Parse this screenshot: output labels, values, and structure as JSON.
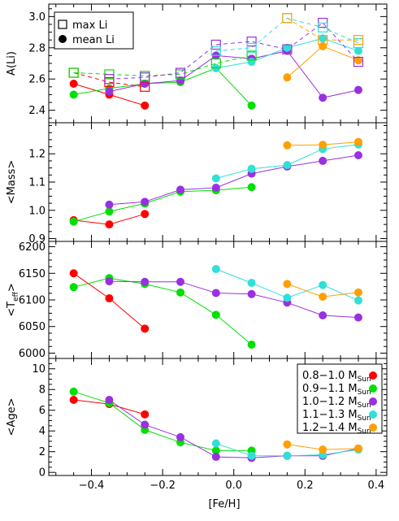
{
  "colors": {
    "0.8-1.0": "#ff0000",
    "0.9-1.1": "#00e000",
    "1.0-1.2": "#9a30e0",
    "1.1-1.3": "#30e0d8",
    "1.2-1.4": "#ffa000",
    "frame": "#000000"
  },
  "x_axis": {
    "label": "[Fe/H]",
    "xlim": [
      -0.52,
      0.43
    ],
    "ticks": [
      -0.4,
      -0.2,
      0.0,
      0.2,
      0.4
    ],
    "tick_labels": [
      "−0.4",
      "−0.2",
      "0.0",
      "0.2",
      "0.4"
    ]
  },
  "legend_top": {
    "max_label": "max Li",
    "mean_label": "mean Li"
  },
  "legend_bottom": [
    {
      "key": "0.8-1.0",
      "text": "0.8−1.0 M",
      "sub": "Sun"
    },
    {
      "key": "0.9-1.1",
      "text": "0.9−1.1 M",
      "sub": "Sun"
    },
    {
      "key": "1.0-1.2",
      "text": "1.0−1.2 M",
      "sub": "Sun"
    },
    {
      "key": "1.1-1.3",
      "text": "1.1−1.3 M",
      "sub": "Sun"
    },
    {
      "key": "1.2-1.4",
      "text": "1.2−1.4 M",
      "sub": "Sun"
    }
  ],
  "chart_data": [
    {
      "type": "line",
      "panel": "ALi",
      "ylabel": "A(Li)",
      "ylim": [
        2.32,
        3.08
      ],
      "yticks": [
        2.4,
        2.6,
        2.8,
        3.0
      ],
      "ytick_labels": [
        "2.4",
        "2.6",
        "2.8",
        "3.0"
      ],
      "series": [
        {
          "key": "0.8-1.0",
          "kind": "mean",
          "x": [
            -0.45,
            -0.35,
            -0.25
          ],
          "y": [
            2.57,
            2.5,
            2.43
          ]
        },
        {
          "key": "0.9-1.1",
          "kind": "mean",
          "x": [
            -0.45,
            -0.35,
            -0.25,
            -0.15,
            -0.05,
            0.05
          ],
          "y": [
            2.5,
            2.54,
            2.57,
            2.58,
            2.67,
            2.43
          ]
        },
        {
          "key": "1.0-1.2",
          "kind": "mean",
          "x": [
            -0.35,
            -0.25,
            -0.15,
            -0.05,
            0.05,
            0.15,
            0.25,
            0.35
          ],
          "y": [
            2.52,
            2.57,
            2.59,
            2.75,
            2.73,
            2.78,
            2.48,
            2.53
          ]
        },
        {
          "key": "1.1-1.3",
          "kind": "mean",
          "x": [
            -0.05,
            0.05,
            0.15,
            0.25,
            0.35
          ],
          "y": [
            2.67,
            2.71,
            2.8,
            2.86,
            2.78
          ]
        },
        {
          "key": "1.2-1.4",
          "kind": "mean",
          "x": [
            0.15,
            0.25,
            0.35
          ],
          "y": [
            2.61,
            2.81,
            2.72
          ]
        },
        {
          "key": "0.8-1.0",
          "kind": "max",
          "x": [
            -0.45,
            -0.35,
            -0.25
          ],
          "y": [
            2.64,
            2.58,
            2.55
          ]
        },
        {
          "key": "0.9-1.1",
          "kind": "max",
          "x": [
            -0.45,
            -0.35,
            -0.25,
            -0.15,
            -0.05,
            0.05
          ],
          "y": [
            2.64,
            2.63,
            2.62,
            2.63,
            2.7,
            2.75
          ]
        },
        {
          "key": "1.0-1.2",
          "kind": "max",
          "x": [
            -0.35,
            -0.25,
            -0.15,
            -0.05,
            0.05,
            0.15,
            0.25,
            0.35
          ],
          "y": [
            2.6,
            2.61,
            2.64,
            2.82,
            2.84,
            2.79,
            2.96,
            2.71
          ]
        },
        {
          "key": "1.1-1.3",
          "kind": "max",
          "x": [
            -0.05,
            0.05,
            0.15,
            0.25,
            0.35
          ],
          "y": [
            2.78,
            2.8,
            2.99,
            2.93,
            2.83
          ]
        },
        {
          "key": "1.2-1.4",
          "kind": "max",
          "x": [
            0.15,
            0.25,
            0.35
          ],
          "y": [
            2.99,
            2.85,
            2.85
          ]
        }
      ]
    },
    {
      "type": "line",
      "panel": "Mass",
      "ylabel": "<Mass>",
      "ylim": [
        0.89,
        1.31
      ],
      "yticks": [
        0.9,
        1.0,
        1.1,
        1.2
      ],
      "ytick_labels": [
        "0.9",
        "1.0",
        "1.1",
        "1.2"
      ],
      "series": [
        {
          "key": "0.8-1.0",
          "x": [
            -0.45,
            -0.35,
            -0.25
          ],
          "y": [
            0.965,
            0.95,
            0.987
          ]
        },
        {
          "key": "0.9-1.1",
          "x": [
            -0.45,
            -0.35,
            -0.25,
            -0.15,
            -0.05,
            0.05
          ],
          "y": [
            0.96,
            0.996,
            1.024,
            1.066,
            1.071,
            1.082
          ]
        },
        {
          "key": "1.0-1.2",
          "x": [
            -0.35,
            -0.25,
            -0.15,
            -0.05,
            0.05,
            0.15,
            0.25,
            0.35
          ],
          "y": [
            1.02,
            1.03,
            1.073,
            1.08,
            1.13,
            1.155,
            1.175,
            1.195
          ]
        },
        {
          "key": "1.1-1.3",
          "x": [
            -0.05,
            0.05,
            0.15,
            0.25,
            0.35
          ],
          "y": [
            1.113,
            1.147,
            1.16,
            1.217,
            1.233
          ]
        },
        {
          "key": "1.2-1.4",
          "x": [
            0.15,
            0.25,
            0.35
          ],
          "y": [
            1.23,
            1.232,
            1.242
          ]
        }
      ]
    },
    {
      "type": "line",
      "panel": "Teff",
      "ylabel": "<T",
      "ylabel_sub": "eff",
      "ylabel_end": ">",
      "ylim": [
        5990,
        6210
      ],
      "yticks": [
        6000,
        6050,
        6100,
        6150,
        6200
      ],
      "ytick_labels": [
        "6000",
        "6050",
        "6100",
        "6150",
        "6200"
      ],
      "series": [
        {
          "key": "0.8-1.0",
          "x": [
            -0.45,
            -0.35,
            -0.25
          ],
          "y": [
            6150,
            6103,
            6046
          ]
        },
        {
          "key": "0.9-1.1",
          "x": [
            -0.45,
            -0.35,
            -0.25,
            -0.15,
            -0.05,
            0.05
          ],
          "y": [
            6124,
            6141,
            6130,
            6114,
            6072,
            6016
          ]
        },
        {
          "key": "1.0-1.2",
          "x": [
            -0.35,
            -0.25,
            -0.15,
            -0.05,
            0.05,
            0.15,
            0.25,
            0.35
          ],
          "y": [
            6135,
            6134,
            6134,
            6113,
            6111,
            6095,
            6071,
            6067
          ]
        },
        {
          "key": "1.1-1.3",
          "x": [
            -0.05,
            0.05,
            0.15,
            0.25,
            0.35
          ],
          "y": [
            6158,
            6132,
            6104,
            6128,
            6099
          ]
        },
        {
          "key": "1.2-1.4",
          "x": [
            0.15,
            0.25,
            0.35
          ],
          "y": [
            6130,
            6106,
            6114
          ]
        }
      ]
    },
    {
      "type": "line",
      "panel": "Age",
      "ylabel": "<Age>",
      "ylim": [
        -0.3,
        11
      ],
      "yticks": [
        0,
        2,
        4,
        6,
        8,
        10
      ],
      "ytick_labels": [
        "0",
        "2",
        "4",
        "6",
        "8",
        "10"
      ],
      "series": [
        {
          "key": "0.8-1.0",
          "x": [
            -0.45,
            -0.35,
            -0.25
          ],
          "y": [
            7.0,
            6.6,
            5.6
          ]
        },
        {
          "key": "0.9-1.1",
          "x": [
            -0.45,
            -0.35,
            -0.25,
            -0.15,
            -0.05,
            0.05
          ],
          "y": [
            7.8,
            6.7,
            4.1,
            2.9,
            2.1,
            2.1
          ]
        },
        {
          "key": "1.0-1.2",
          "x": [
            -0.35,
            -0.25,
            -0.15,
            -0.05,
            0.05,
            0.15,
            0.25,
            0.35
          ],
          "y": [
            7.0,
            4.6,
            3.4,
            1.5,
            1.4,
            1.6,
            1.6,
            2.3
          ]
        },
        {
          "key": "1.1-1.3",
          "x": [
            -0.05,
            0.05,
            0.15,
            0.25,
            0.35
          ],
          "y": [
            2.8,
            1.6,
            1.6,
            1.7,
            2.2
          ]
        },
        {
          "key": "1.2-1.4",
          "x": [
            0.15,
            0.25,
            0.35
          ],
          "y": [
            2.7,
            2.2,
            2.3
          ]
        }
      ]
    }
  ]
}
